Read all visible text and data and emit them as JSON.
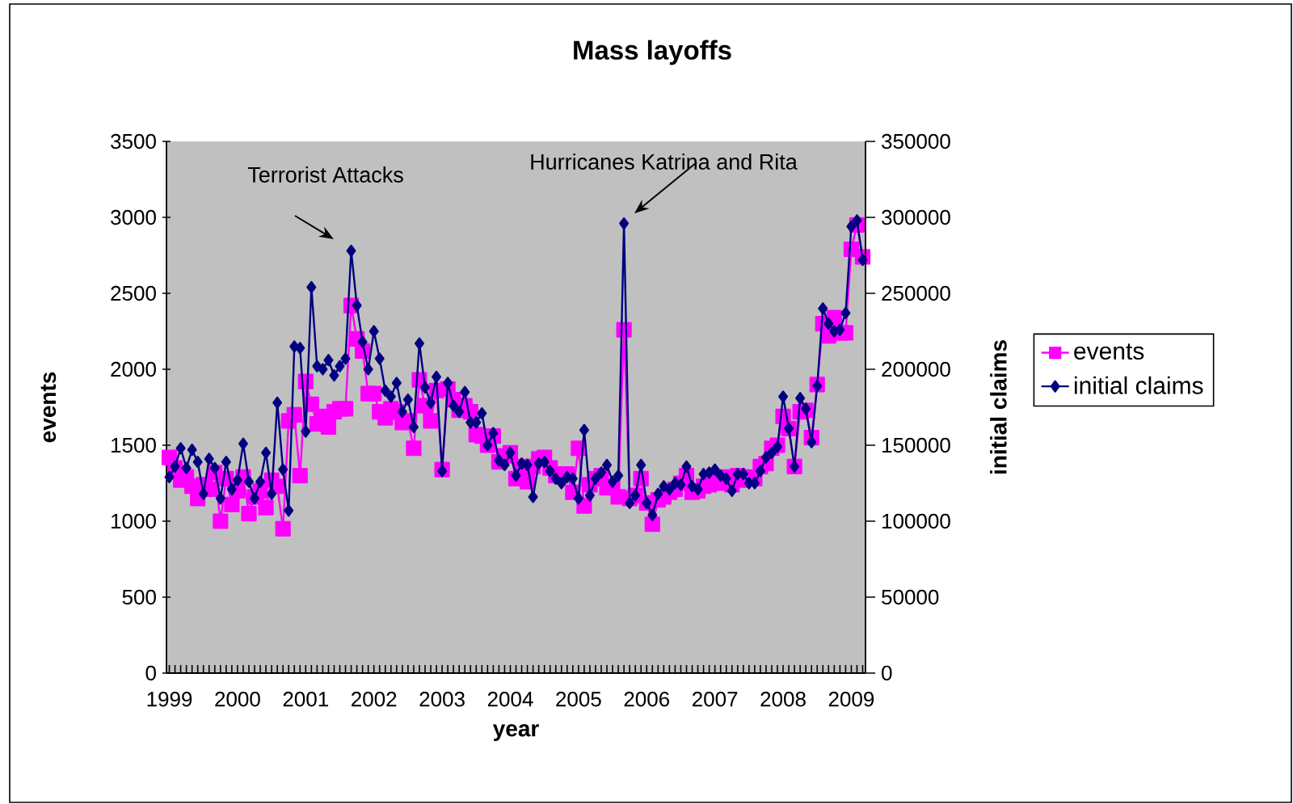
{
  "chart_data": {
    "type": "line",
    "title": "Mass layoffs",
    "xlabel": "year",
    "ylabel": "events",
    "y2label": "initial claims",
    "categories": [
      "1999",
      null,
      null,
      null,
      null,
      null,
      null,
      null,
      null,
      null,
      null,
      null,
      "2000",
      null,
      null,
      null,
      null,
      null,
      null,
      null,
      null,
      null,
      null,
      null,
      "2001",
      null,
      null,
      null,
      null,
      null,
      null,
      null,
      null,
      null,
      null,
      null,
      "2002",
      null,
      null,
      null,
      null,
      null,
      null,
      null,
      null,
      null,
      null,
      null,
      "2003",
      null,
      null,
      null,
      null,
      null,
      null,
      null,
      null,
      null,
      null,
      null,
      "2004",
      null,
      null,
      null,
      null,
      null,
      null,
      null,
      null,
      null,
      null,
      null,
      "2005",
      null,
      null,
      null,
      null,
      null,
      null,
      null,
      null,
      null,
      null,
      null,
      "2006",
      null,
      null,
      null,
      null,
      null,
      null,
      null,
      null,
      null,
      null,
      null,
      "2007",
      null,
      null,
      null,
      null,
      null,
      null,
      null,
      null,
      null,
      null,
      null,
      "2008",
      null,
      null,
      null,
      null,
      null,
      null,
      null,
      null,
      null,
      null,
      null,
      "2009",
      null,
      null
    ],
    "series": [
      {
        "name": "events",
        "color": "#ff00ff",
        "marker": "square",
        "values": [
          1420,
          1350,
          1270,
          1290,
          1230,
          1150,
          1240,
          1210,
          1320,
          1000,
          1280,
          1110,
          1200,
          1290,
          1050,
          1160,
          1200,
          1090,
          1270,
          1230,
          950,
          1660,
          1700,
          1300,
          1920,
          1770,
          1640,
          1690,
          1620,
          1720,
          1740,
          1740,
          2420,
          2200,
          2120,
          1840,
          1840,
          1720,
          1680,
          1740,
          1720,
          1650,
          1660,
          1480,
          1930,
          1760,
          1660,
          1860,
          1340,
          1870,
          1800,
          1730,
          1760,
          1720,
          1570,
          1560,
          1500,
          1560,
          1390,
          1430,
          1450,
          1280,
          1360,
          1260,
          1360,
          1410,
          1420,
          1350,
          1300,
          1310,
          1310,
          1190,
          1480,
          1100,
          1240,
          1280,
          1300,
          1220,
          1230,
          1160,
          2260,
          1150,
          1170,
          1280,
          1120,
          980,
          1140,
          1160,
          1190,
          1210,
          1250,
          1300,
          1190,
          1200,
          1230,
          1240,
          1260,
          1250,
          1290,
          1240,
          1300,
          1270,
          1290,
          1280,
          1360,
          1380,
          1480,
          1500,
          1690,
          1610,
          1360,
          1720,
          1730,
          1550,
          1900,
          2300,
          2220,
          2340,
          2240,
          2240,
          2790,
          2950,
          2740
        ]
      },
      {
        "name": "initial claims",
        "color": "#000080",
        "marker": "diamond",
        "axis": "y2",
        "values": [
          129000,
          136000,
          148000,
          135000,
          147000,
          139000,
          118000,
          141000,
          135000,
          115000,
          139000,
          121000,
          127000,
          151000,
          126000,
          115000,
          126000,
          145000,
          118000,
          178000,
          134000,
          107000,
          215000,
          214000,
          159000,
          254000,
          202000,
          200000,
          206000,
          196000,
          202000,
          207000,
          278000,
          242000,
          218000,
          200000,
          225000,
          207000,
          186000,
          182000,
          191000,
          172000,
          180000,
          162000,
          217000,
          188000,
          178000,
          195000,
          133000,
          191000,
          176000,
          172000,
          185000,
          165000,
          165000,
          171000,
          150000,
          158000,
          140000,
          137000,
          145000,
          130000,
          138000,
          137000,
          116000,
          138000,
          139000,
          133000,
          128000,
          125000,
          129000,
          128000,
          115000,
          160000,
          117000,
          128000,
          132000,
          137000,
          126000,
          130000,
          296000,
          112000,
          117000,
          137000,
          112000,
          104000,
          118000,
          123000,
          121000,
          125000,
          124000,
          136000,
          123000,
          121000,
          131000,
          132000,
          134000,
          130000,
          128000,
          120000,
          131000,
          131000,
          125000,
          125000,
          133000,
          142000,
          145000,
          149000,
          182000,
          161000,
          136000,
          181000,
          174000,
          152000,
          189000,
          240000,
          230000,
          225000,
          226000,
          237000,
          294000,
          298000,
          272000
        ]
      }
    ],
    "ylim": [
      0,
      3500
    ],
    "yticks": [
      0,
      500,
      1000,
      1500,
      2000,
      2500,
      3000,
      3500
    ],
    "y2lim": [
      0,
      350000
    ],
    "y2ticks": [
      0,
      50000,
      100000,
      150000,
      200000,
      250000,
      300000,
      350000
    ],
    "legend": "right",
    "grid": false,
    "line_style": "solid",
    "annotations": [
      "Terrorist Attacks",
      "Hurricanes Katrina and Rita"
    ]
  }
}
